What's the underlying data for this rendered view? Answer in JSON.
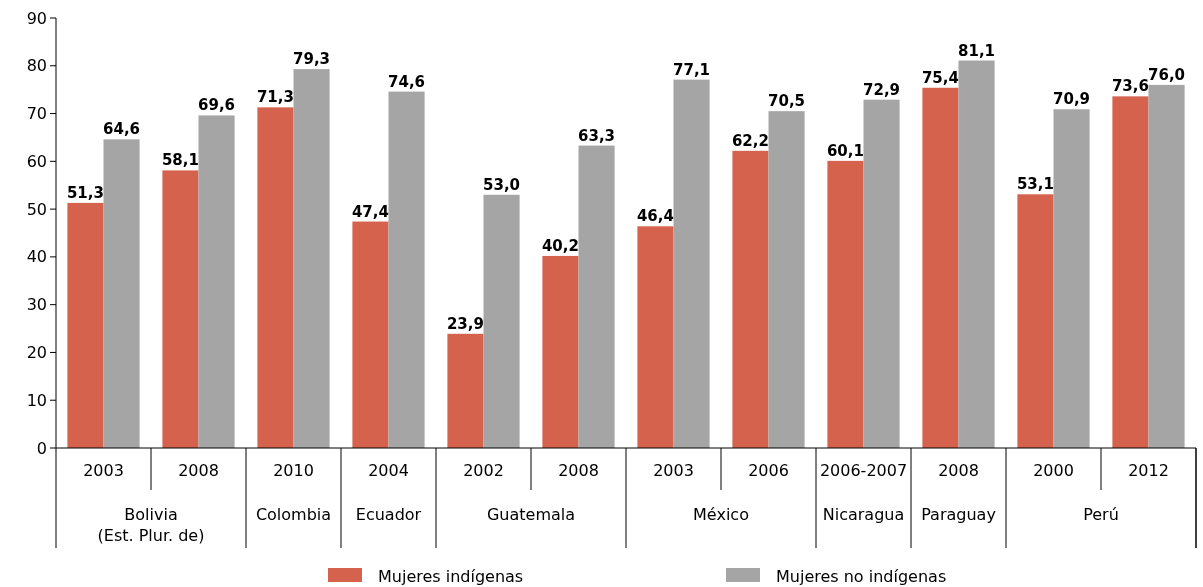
{
  "chart_data": {
    "type": "bar",
    "categories": [
      "2003",
      "2008",
      "2010",
      "2004",
      "2002",
      "2008",
      "2003",
      "2006",
      "2006-2007",
      "2008",
      "2000",
      "2012"
    ],
    "series": [
      {
        "name": "Mujeres indígenas",
        "color": "#d4624c",
        "values": [
          51.3,
          58.1,
          71.3,
          47.4,
          23.9,
          40.2,
          46.4,
          62.2,
          60.1,
          75.4,
          53.1,
          73.6
        ],
        "value_labels": [
          "51,3",
          "58,1",
          "71,3",
          "47,4",
          "23,9",
          "40,2",
          "46,4",
          "62,2",
          "60,1",
          "75,4",
          "53,1",
          "73,6"
        ]
      },
      {
        "name": "Mujeres no indígenas",
        "color": "#a5a5a5",
        "values": [
          64.6,
          69.6,
          79.3,
          74.6,
          53.0,
          63.3,
          77.1,
          70.5,
          72.9,
          81.1,
          70.9,
          76.0
        ],
        "value_labels": [
          "64,6",
          "69,6",
          "79,3",
          "74,6",
          "53,0",
          "63,3",
          "77,1",
          "70,5",
          "72,9",
          "81,1",
          "70,9",
          "76,0"
        ]
      }
    ],
    "ylim": [
      0,
      90
    ],
    "yticks": [
      0,
      10,
      20,
      30,
      40,
      50,
      60,
      70,
      80,
      90
    ],
    "grid": false,
    "legend": "bottom",
    "annotations": [
      "Bolivia\n(Est. Plur. de)",
      "Colombia",
      "Ecuador",
      "Guatemala",
      "México",
      "Nicaragua",
      "Paraguay",
      "Perú"
    ]
  }
}
